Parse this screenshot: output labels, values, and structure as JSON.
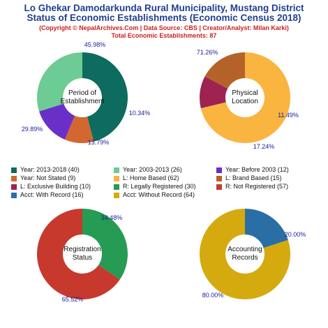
{
  "header": {
    "title_line1": "Lo Ghekar Damodarkunda Rural Municipality, Mustang District",
    "title_line2": "Status of Economic Establishments (Economic Census 2018)",
    "subtitle": "(Copyright © NepalArchives.Com | Data Source: CBS | Creator/Analyst: Milan Karki)",
    "total": "Total Economic Establishments: 87"
  },
  "chart_data": [
    {
      "type": "pie",
      "title": "Period of\nEstablishment",
      "categories": [
        "Year: 2013-2018",
        "Year: Not Stated",
        "Year: Before 2003",
        "Year: 2003-2013"
      ],
      "values": [
        40,
        9,
        12,
        26
      ],
      "percent_labels": [
        "45.98%",
        "10.34%",
        "13.79%",
        "29.89%"
      ],
      "colors": [
        "#0e6b5f",
        "#d2682f",
        "#6b2fc9",
        "#6dcb94"
      ]
    },
    {
      "type": "pie",
      "title": "Physical\nLocation",
      "categories": [
        "L: Home Based",
        "L: Exclusive Building",
        "L: Brand Based"
      ],
      "values": [
        62,
        10,
        15
      ],
      "percent_labels": [
        "71.26%",
        "11.49%",
        "17.24%"
      ],
      "colors": [
        "#f9b53f",
        "#9e2350",
        "#b5622a"
      ]
    },
    {
      "type": "pie",
      "title": "Registration\nStatus",
      "categories": [
        "R: Legally Registered",
        "R: Not Registered"
      ],
      "values": [
        30,
        57
      ],
      "percent_labels": [
        "34.48%",
        "65.52%"
      ],
      "colors": [
        "#259b54",
        "#c7392d"
      ]
    },
    {
      "type": "pie",
      "title": "Accounting\nRecords",
      "categories": [
        "Acct: With Record",
        "Acct: Without Record"
      ],
      "values": [
        16,
        64
      ],
      "percent_labels": [
        "20.00%",
        "80.00%"
      ],
      "colors": [
        "#2a6ea6",
        "#d4aa0f"
      ]
    }
  ],
  "legend": [
    {
      "label": "Year: 2013-2018 (40)",
      "color": "#0e6b5f"
    },
    {
      "label": "Year: 2003-2013 (26)",
      "color": "#6dcb94"
    },
    {
      "label": "Year: Before 2003 (12)",
      "color": "#6b2fc9"
    },
    {
      "label": "Year: Not Stated (9)",
      "color": "#d2682f"
    },
    {
      "label": "L: Home Based (62)",
      "color": "#f9b53f"
    },
    {
      "label": "L: Brand Based (15)",
      "color": "#b5622a"
    },
    {
      "label": "L: Exclusive Building (10)",
      "color": "#9e2350"
    },
    {
      "label": "R: Legally Registered (30)",
      "color": "#259b54"
    },
    {
      "label": "R: Not Registered (57)",
      "color": "#c7392d"
    },
    {
      "label": "Acct: With Record (16)",
      "color": "#2a6ea6"
    },
    {
      "label": "Acct: Without Record (64)",
      "color": "#d4aa0f"
    }
  ]
}
